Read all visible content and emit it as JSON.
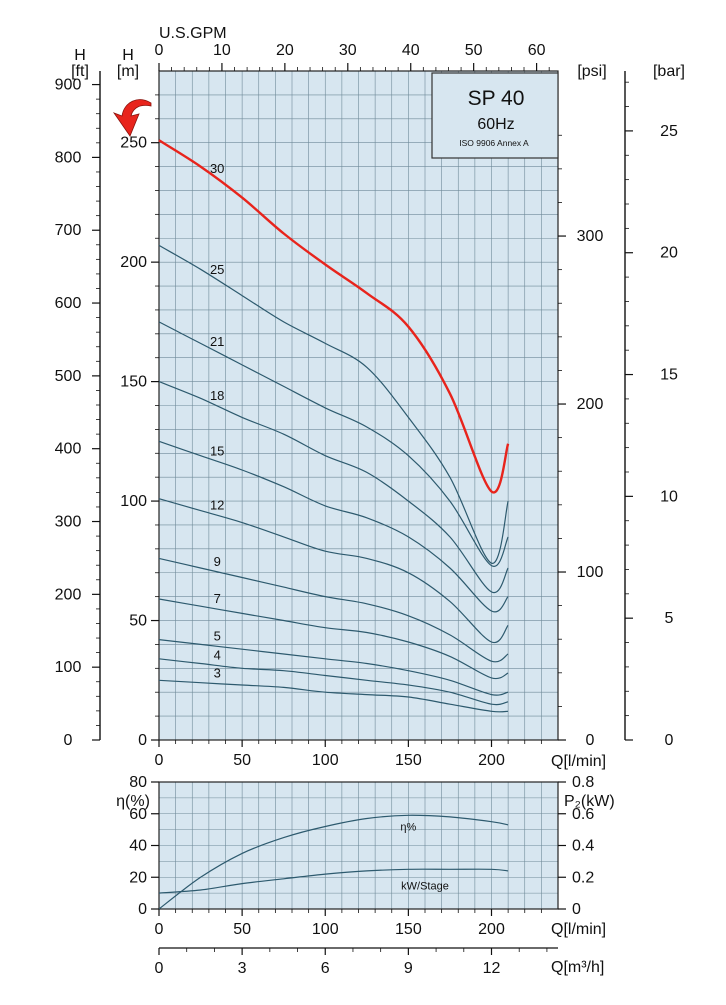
{
  "chart_data": [
    {
      "type": "line",
      "title": "SP 40",
      "subtitle": "60Hz",
      "note": "ISO 9906 Annex A",
      "xlabel": "Q[l/min]",
      "xlim": [
        0,
        240
      ],
      "x_ticks": [
        0,
        50,
        100,
        150,
        200
      ],
      "x_top_label": "U.S.GPM",
      "x_top_ticks": [
        0,
        10,
        20,
        30,
        40,
        50,
        60
      ],
      "left_outer_label": "H",
      "left_outer_unit": "[ft]",
      "left_outer_ticks": [
        0,
        100,
        200,
        300,
        400,
        500,
        600,
        700,
        800,
        900
      ],
      "ylabel": "H",
      "y_unit": "[m]",
      "ylim": [
        0,
        280
      ],
      "y_ticks": [
        0,
        50,
        100,
        150,
        200,
        250
      ],
      "right_inner_unit": "[psi]",
      "right_inner_ticks": [
        0,
        100,
        200,
        300
      ],
      "right_outer_unit": "[bar]",
      "right_outer_ticks": [
        0,
        5,
        10,
        15,
        20,
        25
      ],
      "highlight_color": "#e8241c",
      "curve_color": "#2d5a6e",
      "grid_color": "#6f8a99",
      "background_color": "#d7e6f0",
      "x": [
        0,
        25,
        50,
        75,
        100,
        125,
        150,
        175,
        200,
        210
      ],
      "series": [
        {
          "name": "30",
          "highlighted": true,
          "values": [
            251,
            240,
            227,
            212,
            199,
            187,
            173,
            145,
            104,
            124
          ]
        },
        {
          "name": "25",
          "values": [
            207,
            197,
            186,
            175,
            166,
            156,
            135,
            110,
            74,
            100
          ]
        },
        {
          "name": "21",
          "values": [
            175,
            166,
            157,
            148,
            139,
            131,
            119,
            100,
            73,
            85
          ]
        },
        {
          "name": "18",
          "values": [
            150,
            143,
            135,
            128,
            119,
            112,
            100,
            85,
            62,
            72
          ]
        },
        {
          "name": "15",
          "values": [
            125,
            119,
            113,
            106,
            98,
            93,
            85,
            72,
            54,
            60
          ]
        },
        {
          "name": "12",
          "values": [
            101,
            96,
            91,
            85,
            79,
            76,
            70,
            58,
            41,
            48
          ]
        },
        {
          "name": "9",
          "values": [
            76,
            72,
            68,
            64,
            60,
            57,
            52,
            44,
            33,
            36
          ]
        },
        {
          "name": "7",
          "values": [
            59,
            56,
            53,
            50,
            47,
            45,
            41,
            35,
            26,
            28
          ]
        },
        {
          "name": "5",
          "values": [
            42,
            40,
            38,
            36,
            34,
            32,
            29,
            25,
            19,
            20
          ]
        },
        {
          "name": "4",
          "values": [
            34,
            32,
            30,
            29,
            27,
            25,
            23,
            20,
            15,
            16
          ]
        },
        {
          "name": "3",
          "values": [
            25,
            24,
            23,
            22,
            20,
            19,
            18,
            15,
            12,
            12
          ]
        }
      ]
    },
    {
      "type": "line",
      "xlabel": "Q[l/min]",
      "xlim": [
        0,
        240
      ],
      "x_ticks": [
        0,
        50,
        100,
        150,
        200
      ],
      "x_bottom_label": "Q[m³/h]",
      "x_bottom_ticks": [
        0,
        3,
        6,
        9,
        12
      ],
      "ylabel": "η(%)",
      "ylim": [
        0,
        80
      ],
      "y_ticks": [
        0,
        20,
        40,
        60,
        80
      ],
      "y2label": "P₂(kW)",
      "y2lim": [
        0,
        0.8
      ],
      "y2_ticks": [
        "0",
        "0.2",
        "0.4",
        "0.6",
        "0.8"
      ],
      "x": [
        0,
        25,
        50,
        75,
        100,
        125,
        150,
        175,
        200,
        210
      ],
      "series": [
        {
          "name": "η%",
          "axis": "left",
          "values": [
            0,
            20,
            35,
            45,
            52,
            57,
            59,
            58,
            55,
            53
          ]
        },
        {
          "name": "kW/Stage",
          "axis": "right",
          "values": [
            0.1,
            0.12,
            0.16,
            0.19,
            0.22,
            0.24,
            0.25,
            0.25,
            0.25,
            0.24
          ]
        }
      ]
    }
  ]
}
